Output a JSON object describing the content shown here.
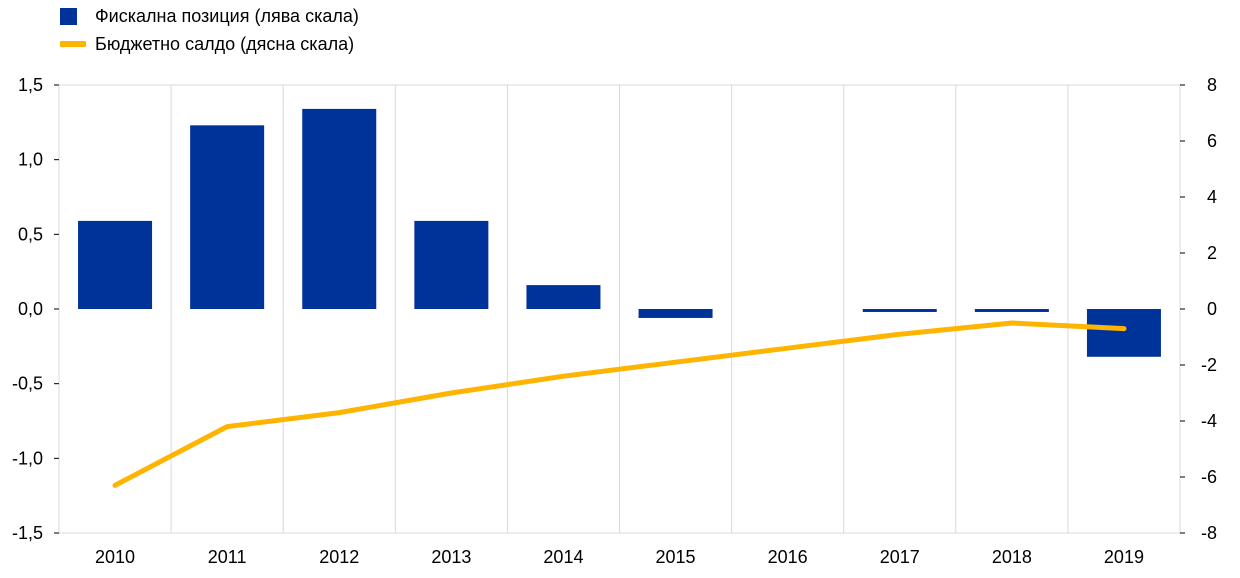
{
  "chart_data": {
    "type": "bar",
    "categories": [
      "2010",
      "2011",
      "2012",
      "2013",
      "2014",
      "2015",
      "2016",
      "2017",
      "2018",
      "2019"
    ],
    "series": [
      {
        "name": "Фискална позиция (лява скала)",
        "type": "bar",
        "axis": "left",
        "color": "#003399",
        "values": [
          0.59,
          1.23,
          1.34,
          0.59,
          0.16,
          -0.06,
          0.0,
          -0.02,
          -0.02,
          -0.32
        ]
      },
      {
        "name": "Бюджетно салдо (дясна скала)",
        "type": "line",
        "axis": "right",
        "color": "#FFB400",
        "values": [
          -6.3,
          -4.2,
          -3.7,
          -3.0,
          -2.4,
          -1.9,
          -1.4,
          -0.9,
          -0.5,
          -0.7
        ]
      }
    ],
    "y_left": {
      "min": -1.5,
      "max": 1.5,
      "ticks": [
        "1,5",
        "1,0",
        "0,5",
        "0,0",
        "-0,5",
        "-1,0",
        "-1,5"
      ]
    },
    "y_right": {
      "min": -8,
      "max": 8,
      "ticks": [
        "8",
        "6",
        "4",
        "2",
        "0",
        "-2",
        "-4",
        "-6",
        "-8"
      ]
    },
    "grid": "vertical",
    "legend_position": "top-left"
  }
}
